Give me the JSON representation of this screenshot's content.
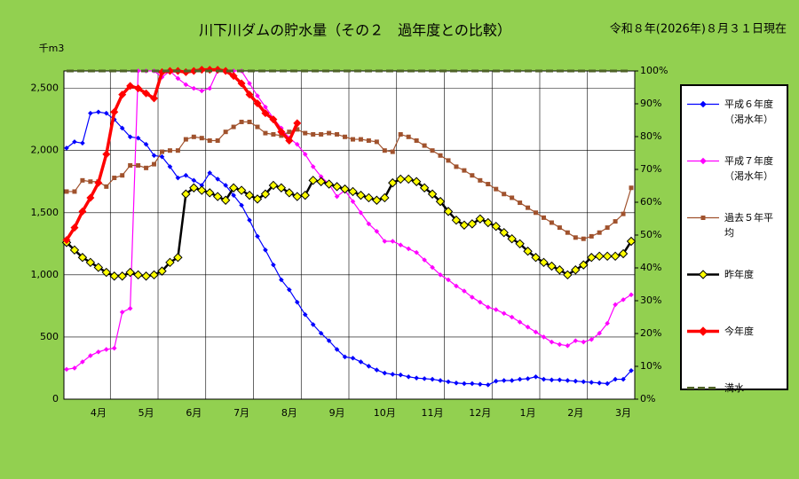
{
  "chart_data": {
    "type": "line",
    "title": "川下川ダムの貯水量（その２　過年度との比較）",
    "subtitle": "令和８年(2026年)８月３１日現在",
    "y_label": "千m3",
    "categories": [
      null,
      null,
      null,
      null,
      "4月",
      null,
      null,
      null,
      null,
      null,
      "5月",
      null,
      null,
      null,
      null,
      null,
      "6月",
      null,
      null,
      null,
      null,
      null,
      "7月",
      null,
      null,
      null,
      null,
      null,
      "8月",
      null,
      null,
      null,
      null,
      null,
      "9月",
      null,
      null,
      null,
      null,
      null,
      "10月",
      null,
      null,
      null,
      null,
      null,
      "11月",
      null,
      null,
      null,
      null,
      null,
      "12月",
      null,
      null,
      null,
      null,
      null,
      "1月",
      null,
      null,
      null,
      null,
      null,
      "2月",
      null,
      null,
      null,
      null,
      null,
      "3月",
      null
    ],
    "ylim": [
      0,
      2640
    ],
    "yticks": [
      0,
      500,
      {
        "value": 1000,
        "label": "1,000"
      },
      {
        "value": 1500,
        "label": "1,500"
      },
      {
        "value": 2000,
        "label": "2,000"
      },
      {
        "value": 2500,
        "label": "2,500"
      }
    ],
    "y2lim": [
      0,
      100
    ],
    "y2ticks": [
      {
        "value": 0,
        "label": "0%"
      },
      {
        "value": 10,
        "label": "10%"
      },
      {
        "value": 20,
        "label": "20%"
      },
      {
        "value": 30,
        "label": "30%"
      },
      {
        "value": 40,
        "label": "40%"
      },
      {
        "value": 50,
        "label": "50%"
      },
      {
        "value": 60,
        "label": "60%"
      },
      {
        "value": 70,
        "label": "70%"
      },
      {
        "value": 80,
        "label": "80%"
      },
      {
        "value": 90,
        "label": "90%"
      },
      {
        "value": 100,
        "label": "100%"
      }
    ],
    "grid": true,
    "legend": "right",
    "series": [
      {
        "name": "平成６年度\n（渇水年）",
        "color": "#0000ff",
        "marker": "diamond",
        "width": 1.2,
        "values": [
          2020,
          2070,
          2060,
          2300,
          2310,
          2300,
          2250,
          2180,
          2110,
          2100,
          2050,
          1960,
          1950,
          1870,
          1780,
          1800,
          1760,
          1720,
          1820,
          1770,
          1720,
          1640,
          1560,
          1440,
          1310,
          1200,
          1080,
          960,
          880,
          780,
          680,
          600,
          530,
          470,
          400,
          340,
          330,
          300,
          265,
          235,
          210,
          200,
          195,
          180,
          170,
          165,
          160,
          150,
          140,
          130,
          125,
          125,
          120,
          115,
          145,
          150,
          150,
          160,
          165,
          180,
          160,
          155,
          155,
          150,
          145,
          140,
          135,
          130,
          125,
          160,
          160,
          230
        ]
      },
      {
        "name": "平成７年度\n（渇水年）",
        "color": "#ff00ff",
        "marker": "diamond",
        "width": 1.2,
        "values": [
          240,
          250,
          300,
          350,
          380,
          400,
          410,
          700,
          730,
          2640,
          2640,
          2640,
          2590,
          2640,
          2580,
          2530,
          2500,
          2480,
          2500,
          2640,
          2640,
          2640,
          2640,
          2540,
          2440,
          2350,
          2260,
          2180,
          2100,
          2050,
          1970,
          1870,
          1790,
          1730,
          1630,
          1680,
          1590,
          1500,
          1410,
          1350,
          1270,
          1270,
          1240,
          1210,
          1180,
          1120,
          1060,
          1000,
          960,
          910,
          870,
          820,
          780,
          740,
          720,
          690,
          660,
          620,
          580,
          540,
          500,
          460,
          440,
          430,
          470,
          460,
          480,
          530,
          610,
          760,
          800,
          840
        ]
      },
      {
        "name": "過去５年平\n均",
        "color": "#a0522d",
        "marker": "square",
        "width": 1.2,
        "values": [
          1670,
          1670,
          1760,
          1750,
          1750,
          1710,
          1780,
          1800,
          1880,
          1880,
          1860,
          1890,
          1990,
          2000,
          2000,
          2090,
          2110,
          2100,
          2080,
          2080,
          2150,
          2190,
          2230,
          2230,
          2190,
          2140,
          2130,
          2120,
          2150,
          2170,
          2140,
          2130,
          2130,
          2140,
          2130,
          2110,
          2090,
          2090,
          2080,
          2070,
          2000,
          1990,
          2130,
          2110,
          2080,
          2040,
          2000,
          1960,
          1920,
          1870,
          1840,
          1800,
          1760,
          1730,
          1690,
          1650,
          1620,
          1580,
          1540,
          1500,
          1460,
          1420,
          1380,
          1340,
          1300,
          1290,
          1310,
          1340,
          1380,
          1430,
          1490,
          1700
        ]
      },
      {
        "name": "昨年度",
        "color": "#000000",
        "marker": "diamond",
        "marker_color": "#ffff00",
        "width": 2.5,
        "values": [
          1260,
          1200,
          1140,
          1100,
          1060,
          1020,
          990,
          990,
          1020,
          1000,
          990,
          1000,
          1030,
          1100,
          1140,
          1650,
          1700,
          1680,
          1660,
          1630,
          1600,
          1700,
          1680,
          1640,
          1610,
          1650,
          1720,
          1700,
          1660,
          1630,
          1640,
          1760,
          1750,
          1730,
          1710,
          1690,
          1670,
          1640,
          1620,
          1600,
          1620,
          1740,
          1770,
          1770,
          1750,
          1700,
          1650,
          1590,
          1510,
          1440,
          1400,
          1410,
          1450,
          1420,
          1390,
          1340,
          1290,
          1250,
          1190,
          1140,
          1100,
          1070,
          1040,
          1000,
          1040,
          1080,
          1140,
          1150,
          1150,
          1150,
          1170,
          1270
        ]
      },
      {
        "name": "今年度",
        "color": "#ff0000",
        "marker": "diamond",
        "width": 3.5,
        "values": [
          1280,
          1380,
          1510,
          1620,
          1740,
          1970,
          2310,
          2450,
          2520,
          2500,
          2460,
          2420,
          2630,
          2640,
          2640,
          2630,
          2640,
          2650,
          2650,
          2650,
          2640,
          2600,
          2540,
          2450,
          2380,
          2300,
          2250,
          2150,
          2080,
          2220,
          null,
          null,
          null,
          null,
          null,
          null,
          null,
          null,
          null,
          null,
          null,
          null,
          null,
          null,
          null,
          null,
          null,
          null,
          null,
          null,
          null,
          null,
          null,
          null,
          null,
          null,
          null,
          null,
          null,
          null,
          null,
          null,
          null,
          null,
          null,
          null,
          null,
          null,
          null,
          null,
          null,
          null
        ]
      },
      {
        "name": "満水",
        "color": "#4f6228",
        "axis": "y2",
        "dash": true,
        "width": 3,
        "values": [
          100,
          100,
          100,
          100,
          100,
          100,
          100,
          100,
          100,
          100,
          100,
          100,
          100,
          100,
          100,
          100,
          100,
          100,
          100,
          100,
          100,
          100,
          100,
          100,
          100,
          100,
          100,
          100,
          100,
          100,
          100,
          100,
          100,
          100,
          100,
          100,
          100,
          100,
          100,
          100,
          100,
          100,
          100,
          100,
          100,
          100,
          100,
          100,
          100,
          100,
          100,
          100,
          100,
          100,
          100,
          100,
          100,
          100,
          100,
          100,
          100,
          100,
          100,
          100,
          100,
          100,
          100,
          100,
          100,
          100,
          100,
          100
        ]
      }
    ]
  }
}
